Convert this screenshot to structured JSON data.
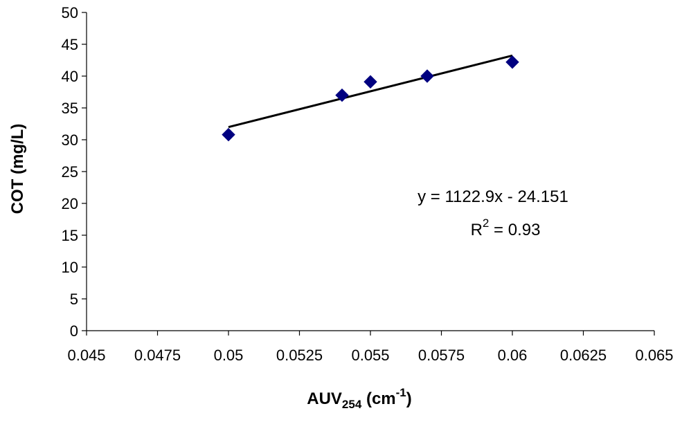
{
  "chart_data": {
    "type": "scatter",
    "title": "",
    "xlabel": {
      "base": "AUV",
      "subscript": "254",
      "unit_open": " (cm",
      "superscript": "-1",
      "unit_close": ")"
    },
    "ylabel": "COT (mg/L)",
    "xlim": [
      0.045,
      0.065
    ],
    "ylim": [
      0,
      50
    ],
    "xticks": [
      "0.045",
      "0.0475",
      "0.05",
      "0.0525",
      "0.055",
      "0.0575",
      "0.06",
      "0.0625",
      "0.065"
    ],
    "yticks": [
      "0",
      "5",
      "10",
      "15",
      "20",
      "25",
      "30",
      "35",
      "40",
      "45",
      "50"
    ],
    "grid": false,
    "legend": "none",
    "series": [
      {
        "marker": "diamond",
        "color": "#000080",
        "x": [
          0.05,
          0.054,
          0.055,
          0.057,
          0.06
        ],
        "y": [
          30.8,
          37.0,
          39.1,
          40.0,
          42.2
        ]
      }
    ],
    "trendline": {
      "type": "linear",
      "slope": 1122.9,
      "intercept": -24.151,
      "x_range": [
        0.05,
        0.06
      ],
      "color": "#000000"
    },
    "annotations": {
      "equation": "y = 1122.9x - 24.151",
      "r2_prefix": "R",
      "r2_superscript": "2",
      "r2_value": " = 0.93"
    }
  }
}
